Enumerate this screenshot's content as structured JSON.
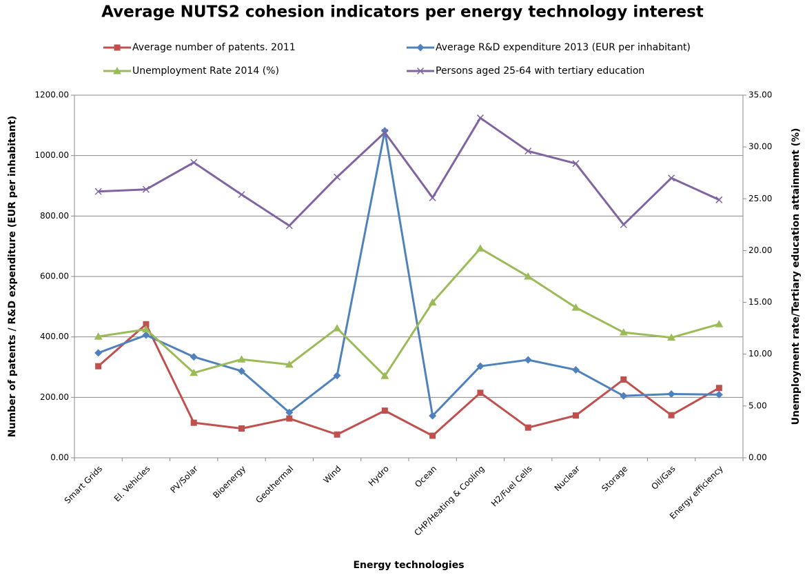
{
  "chart_data": {
    "type": "line",
    "title": "Average NUTS2 cohesion indicators per energy technology interest",
    "xlabel": "Energy technologies",
    "ylabel": "Number of  patents / R&D expenditure (EUR per inhabitant)",
    "y2label": "Unemployment rate/Tertiary education attainment (%)",
    "categories": [
      "Smart Grids",
      "El. Vehicles",
      "PV/Solar",
      "Bioenergy",
      "Geothermal",
      "Wind",
      "Hydro",
      "Ocean",
      "CHP/Heating & Cooling",
      "H2/Fuel Cells",
      "Nuclear",
      "Storage",
      "Oil/Gas",
      "Energy efficiency"
    ],
    "series": [
      {
        "name": "Average number of patents. 2011",
        "color": "#c0504d",
        "marker": "square",
        "values": [
          303,
          442,
          116,
          97,
          130,
          77,
          156,
          73,
          215,
          100,
          140,
          259,
          141,
          231
        ]
      },
      {
        "name": "Average R&D expenditure 2013 (EUR per inhabitant)",
        "color": "#4f81bd",
        "marker": "diamond",
        "values": [
          347,
          406,
          334,
          287,
          150,
          272,
          1082,
          139,
          303,
          324,
          291,
          205,
          211,
          209
        ]
      },
      {
        "name": "Unemployment Rate 2014 (%)",
        "color": "#9bbb59",
        "marker": "triangle",
        "axis": "y2",
        "values": [
          11.7,
          12.4,
          8.2,
          9.5,
          9.0,
          12.5,
          7.9,
          15.0,
          20.2,
          17.5,
          14.5,
          12.1,
          11.6,
          12.9
        ]
      },
      {
        "name": "Persons aged 25-64 with tertiary education",
        "color": "#8064a2",
        "marker": "x",
        "axis": "y2",
        "values": [
          25.7,
          25.9,
          28.5,
          25.4,
          22.4,
          27.1,
          31.4,
          25.1,
          32.8,
          29.6,
          28.4,
          22.5,
          27.0,
          24.9
        ]
      }
    ],
    "ylim": [
      0,
      1200
    ],
    "yticks": [
      {
        "value": 0,
        "label": "0.00"
      },
      {
        "value": 200,
        "label": "200.00"
      },
      {
        "value": 400,
        "label": "400.00"
      },
      {
        "value": 600,
        "label": "600.00"
      },
      {
        "value": 800,
        "label": "800.00"
      },
      {
        "value": 1000,
        "label": "1000.00"
      },
      {
        "value": 1200,
        "label": "1200.00"
      }
    ],
    "y2lim": [
      0,
      35
    ],
    "y2ticks": [
      {
        "value": 0,
        "label": "0.00"
      },
      {
        "value": 5,
        "label": "5.00"
      },
      {
        "value": 10,
        "label": "10.00"
      },
      {
        "value": 15,
        "label": "15.00"
      },
      {
        "value": 20,
        "label": "20.00"
      },
      {
        "value": 25,
        "label": "25.00"
      },
      {
        "value": 30,
        "label": "30.00"
      },
      {
        "value": 35,
        "label": "35.00"
      }
    ],
    "grid": true
  }
}
